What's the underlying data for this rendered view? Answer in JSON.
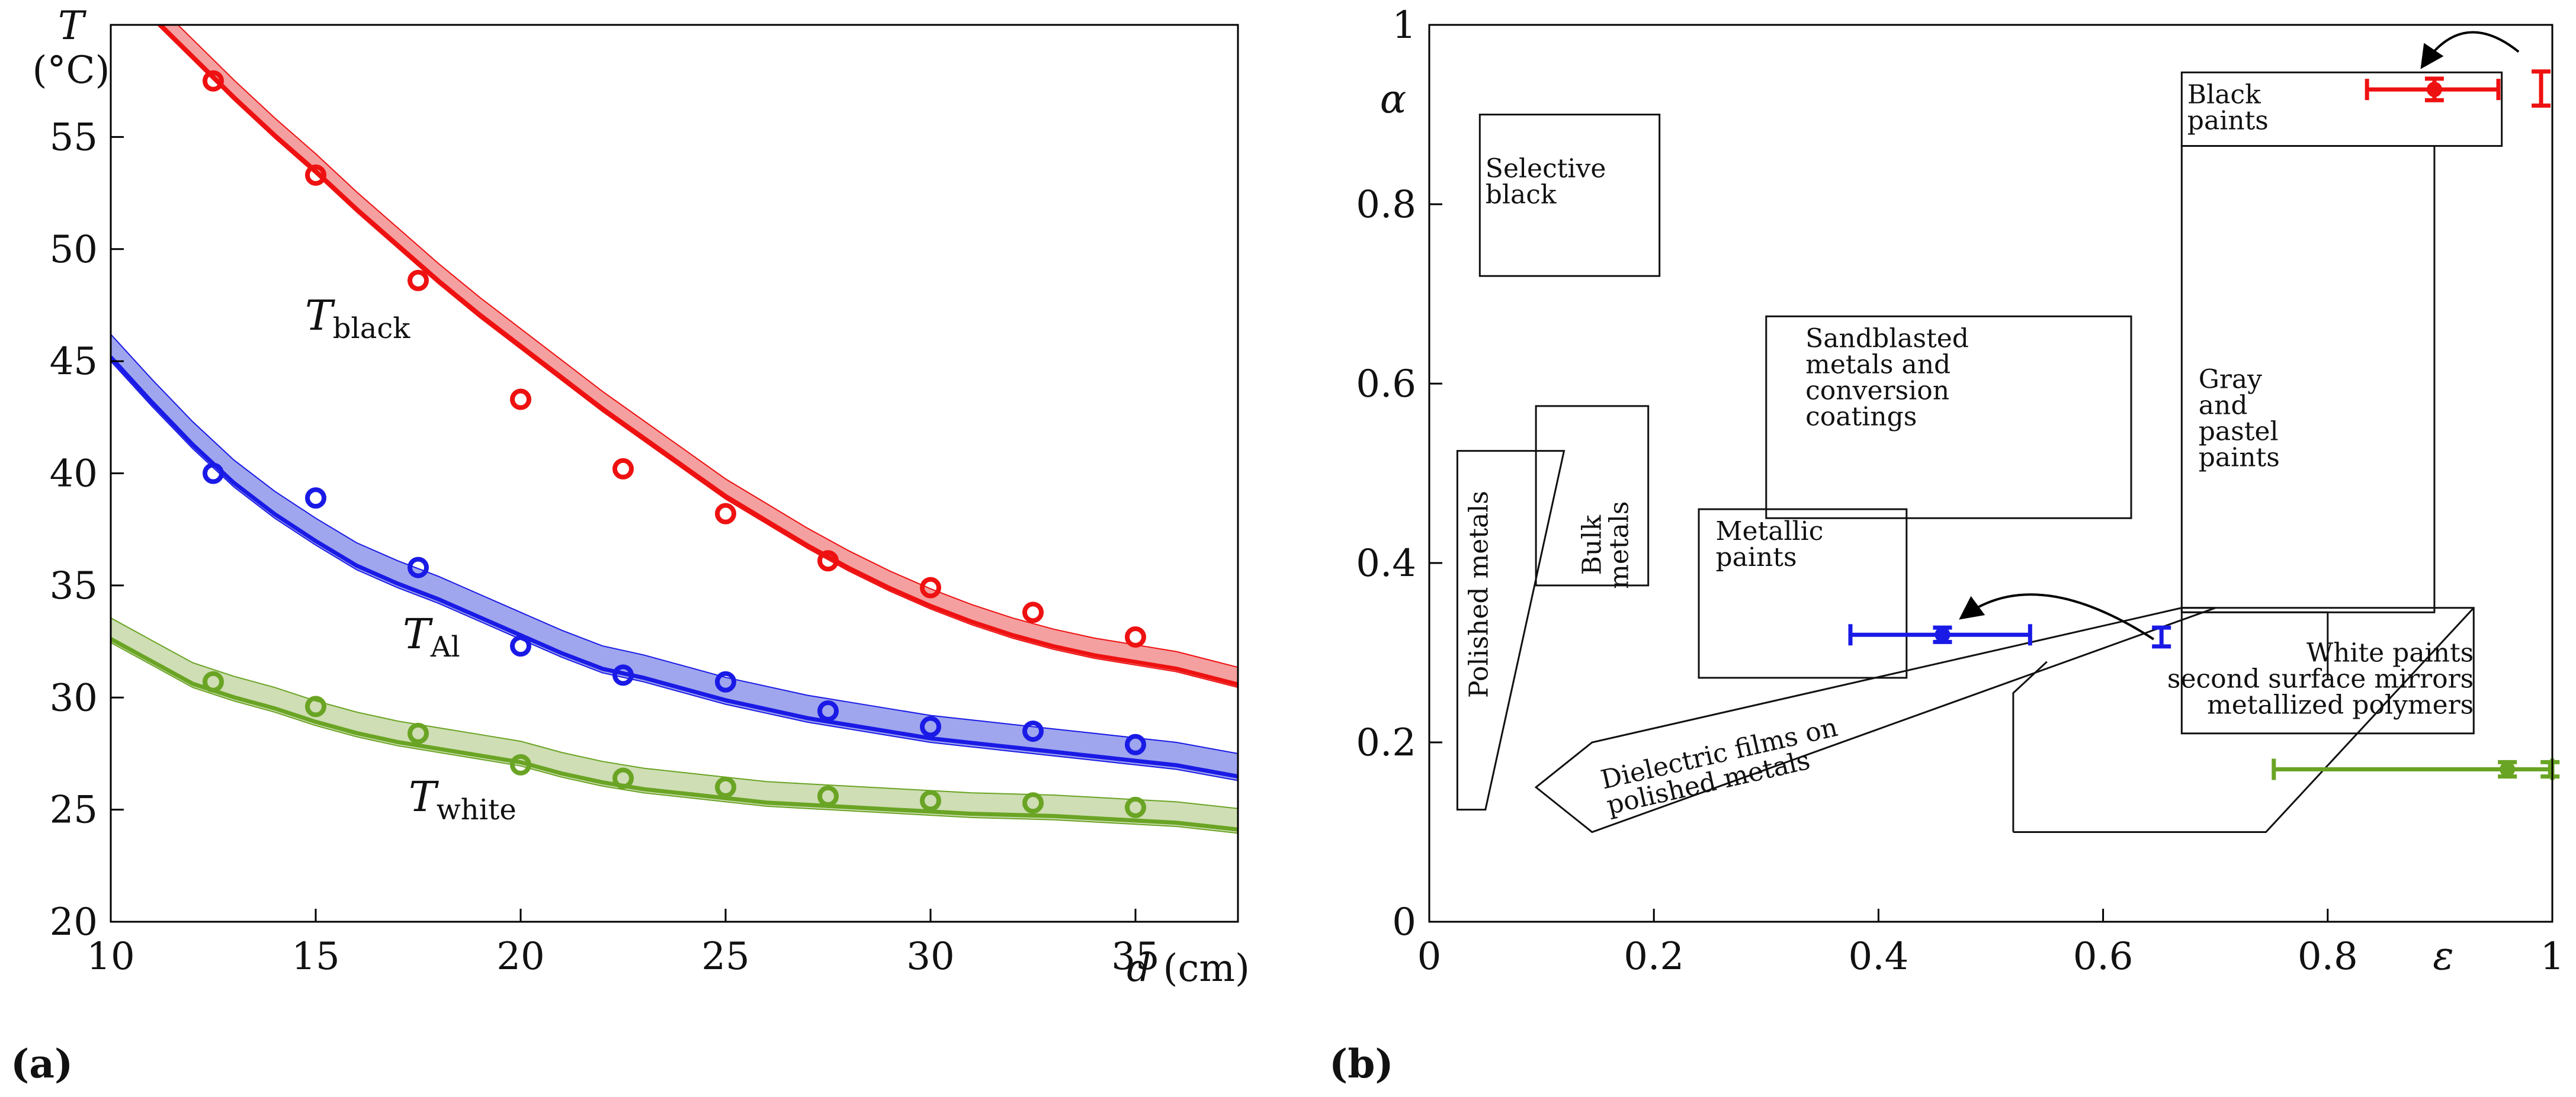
{
  "colors": {
    "black": "#ee1111",
    "al": "#1a1ae6",
    "white": "#6aa424",
    "band_black": "#f4a0a0",
    "band_al": "#9fa6ee",
    "band_white": "#cfdeb4"
  },
  "panel_a_letter": "(a)",
  "panel_b_letter": "(b)",
  "chart_data": [
    {
      "type": "line",
      "panel": "(a)",
      "ylabel_italic": "T",
      "ylabel_unit": "(°C)",
      "xlabel_italic": "d",
      "xlabel_unit": "(cm)",
      "xlim": [
        10,
        37.5
      ],
      "ylim": [
        20,
        60
      ],
      "xticks": [
        "10",
        "15",
        "20",
        "25",
        "30",
        "35"
      ],
      "yticks": [
        "20",
        "25",
        "30",
        "35",
        "40",
        "45",
        "50",
        "55"
      ],
      "series": [
        {
          "key": "black",
          "label_main": "T",
          "label_sub": "black",
          "points_x": [
            12.5,
            15,
            17.5,
            20,
            22.5,
            25,
            27.5,
            30,
            32.5,
            35
          ],
          "points_y": [
            57.5,
            53.3,
            48.6,
            43.3,
            40.2,
            38.2,
            36.1,
            34.9,
            33.8,
            32.7
          ],
          "curve_x": [
            10,
            11,
            12,
            13,
            14,
            15,
            16,
            17,
            18,
            19,
            20,
            21,
            22,
            23,
            24,
            25,
            26,
            27,
            28,
            29,
            30,
            31,
            32,
            33,
            34,
            35,
            36,
            37.5
          ],
          "curve_y": [
            62.5,
            60.7,
            58.9,
            57.1,
            55.4,
            53.8,
            52.1,
            50.5,
            48.9,
            47.4,
            46.0,
            44.6,
            43.2,
            41.9,
            40.6,
            39.3,
            38.2,
            37.1,
            36.1,
            35.2,
            34.4,
            33.7,
            33.1,
            32.6,
            32.2,
            31.9,
            31.6,
            30.9
          ],
          "band": 0.45
        },
        {
          "key": "al",
          "label_main": "T",
          "label_sub": "Al",
          "points_x": [
            12.5,
            15,
            17.5,
            20,
            22.5,
            25,
            27.5,
            30,
            32.5,
            35
          ],
          "points_y": [
            40.0,
            38.9,
            35.8,
            32.3,
            31.0,
            30.7,
            29.4,
            28.7,
            28.5,
            27.9
          ],
          "curve_x": [
            10,
            11,
            12,
            13,
            14,
            15,
            16,
            17,
            18,
            19,
            20,
            21,
            22,
            23,
            24,
            25,
            26,
            27,
            28,
            29,
            30,
            31,
            32,
            33,
            34,
            35,
            36,
            37.5
          ],
          "curve_y": [
            45.6,
            43.6,
            41.7,
            40.0,
            38.6,
            37.4,
            36.3,
            35.5,
            34.8,
            34.0,
            33.2,
            32.4,
            31.7,
            31.3,
            30.8,
            30.3,
            29.9,
            29.5,
            29.2,
            28.9,
            28.6,
            28.4,
            28.2,
            28.0,
            27.8,
            27.6,
            27.4,
            26.9
          ],
          "band": 0.6
        },
        {
          "key": "white",
          "label_main": "T",
          "label_sub": "white",
          "points_x": [
            12.5,
            15,
            17.5,
            20,
            22.5,
            25,
            27.5,
            30,
            32.5,
            35
          ],
          "points_y": [
            30.7,
            29.6,
            28.4,
            27.0,
            26.4,
            26.0,
            25.6,
            25.4,
            25.3,
            25.1
          ],
          "curve_x": [
            10,
            11,
            12,
            13,
            14,
            15,
            16,
            17,
            18,
            19,
            20,
            21,
            22,
            23,
            24,
            25,
            26,
            27,
            28,
            29,
            30,
            31,
            32,
            33,
            34,
            35,
            36,
            37.5
          ],
          "curve_y": [
            33.0,
            32.0,
            31.0,
            30.4,
            29.9,
            29.3,
            28.8,
            28.4,
            28.1,
            27.8,
            27.5,
            27.0,
            26.6,
            26.3,
            26.1,
            25.9,
            25.7,
            25.6,
            25.5,
            25.4,
            25.3,
            25.2,
            25.15,
            25.1,
            25.0,
            24.9,
            24.8,
            24.5
          ],
          "band": 0.55
        }
      ]
    },
    {
      "type": "scatter",
      "panel": "(b)",
      "xlabel_italic": "ε",
      "ylabel_italic": "α",
      "xlim": [
        0,
        1
      ],
      "ylim": [
        0,
        1
      ],
      "xticks": [
        "0",
        "0.2",
        "0.4",
        "0.6",
        "0.8",
        "1"
      ],
      "yticks": [
        "0",
        "0.2",
        "0.4",
        "0.6",
        "0.8",
        "1"
      ],
      "regions": [
        {
          "name": "selective-black",
          "lines": [
            "Selective",
            "black"
          ],
          "x0": 0.045,
          "x1": 0.205,
          "y0": 0.72,
          "y1": 0.9
        },
        {
          "name": "black-paints",
          "lines": [
            "Black",
            "paints"
          ],
          "x0": 0.67,
          "x1": 0.955,
          "y0": 0.865,
          "y1": 0.947
        },
        {
          "name": "gray-pastel-paints",
          "lines": [
            "Gray",
            "and",
            "pastel",
            "paints"
          ],
          "x0": 0.67,
          "x1": 0.895,
          "y0": 0.345,
          "y1": 0.865
        },
        {
          "name": "sandblasted-metals",
          "lines": [
            "Sandblasted",
            "metals and",
            "conversion",
            "coatings"
          ],
          "x0": 0.3,
          "x1": 0.625,
          "y0": 0.45,
          "y1": 0.675
        },
        {
          "name": "bulk-metals",
          "lines": [
            "Bulk",
            "metals"
          ],
          "x0": 0.095,
          "x1": 0.195,
          "y0": 0.375,
          "y1": 0.575
        },
        {
          "name": "metallic-paints",
          "lines": [
            "Metallic",
            "paints"
          ],
          "x0": 0.24,
          "x1": 0.425,
          "y0": 0.272,
          "y1": 0.46
        },
        {
          "name": "white-paints",
          "lines": [
            "White paints",
            "second surface mirrors",
            "metallized polymers"
          ],
          "x0": 0.67,
          "x1": 0.93,
          "y0": 0.21,
          "y1": 0.35
        }
      ],
      "polished_metals_label": "Polished metals",
      "dielectric_label_line1": "Dielectric films on",
      "dielectric_label_line2": "polished metals",
      "measurements": [
        {
          "key": "black",
          "x": 0.895,
          "y": 0.928,
          "xerr_lo": 0.835,
          "xerr_hi": 0.952,
          "yerr_lo": 0.916,
          "yerr_hi": 0.94,
          "bar_x": 0.99,
          "bar_ylo": 0.91,
          "bar_yhi": 0.948
        },
        {
          "key": "al",
          "x": 0.457,
          "y": 0.32,
          "xerr_lo": 0.375,
          "xerr_hi": 0.535,
          "yerr_lo": 0.312,
          "yerr_hi": 0.328,
          "bar_x": 0.652,
          "bar_ylo": 0.307,
          "bar_yhi": 0.328
        },
        {
          "key": "white",
          "x": 0.96,
          "y": 0.17,
          "xerr_lo": 0.752,
          "xerr_hi": 1.0,
          "yerr_lo": 0.162,
          "yerr_hi": 0.178,
          "bar_x": 0.998,
          "bar_ylo": 0.162,
          "bar_yhi": 0.178
        }
      ]
    }
  ]
}
